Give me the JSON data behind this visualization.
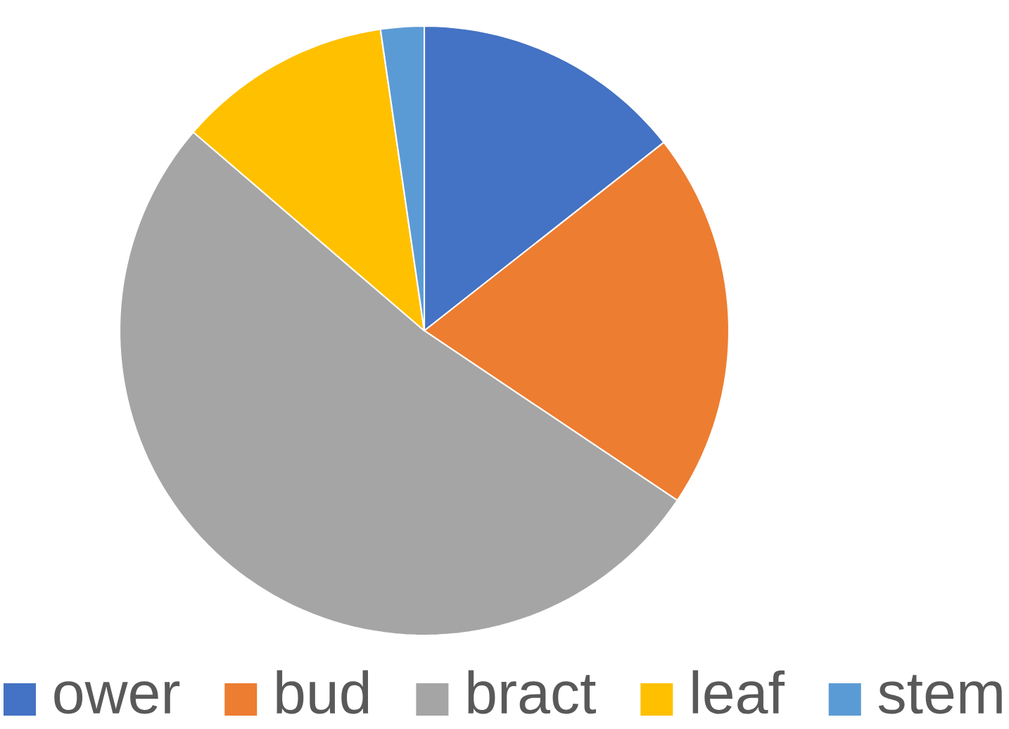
{
  "chart_data": {
    "type": "pie",
    "categories": [
      "ower",
      "bud",
      "bract",
      "leaf",
      "stem"
    ],
    "values": [
      14.4,
      20.0,
      51.9,
      11.4,
      2.3
    ],
    "colors": [
      "#4472c4",
      "#ed7d31",
      "#a5a5a5",
      "#ffc000",
      "#5b9bd5"
    ],
    "legend": "bottom"
  }
}
